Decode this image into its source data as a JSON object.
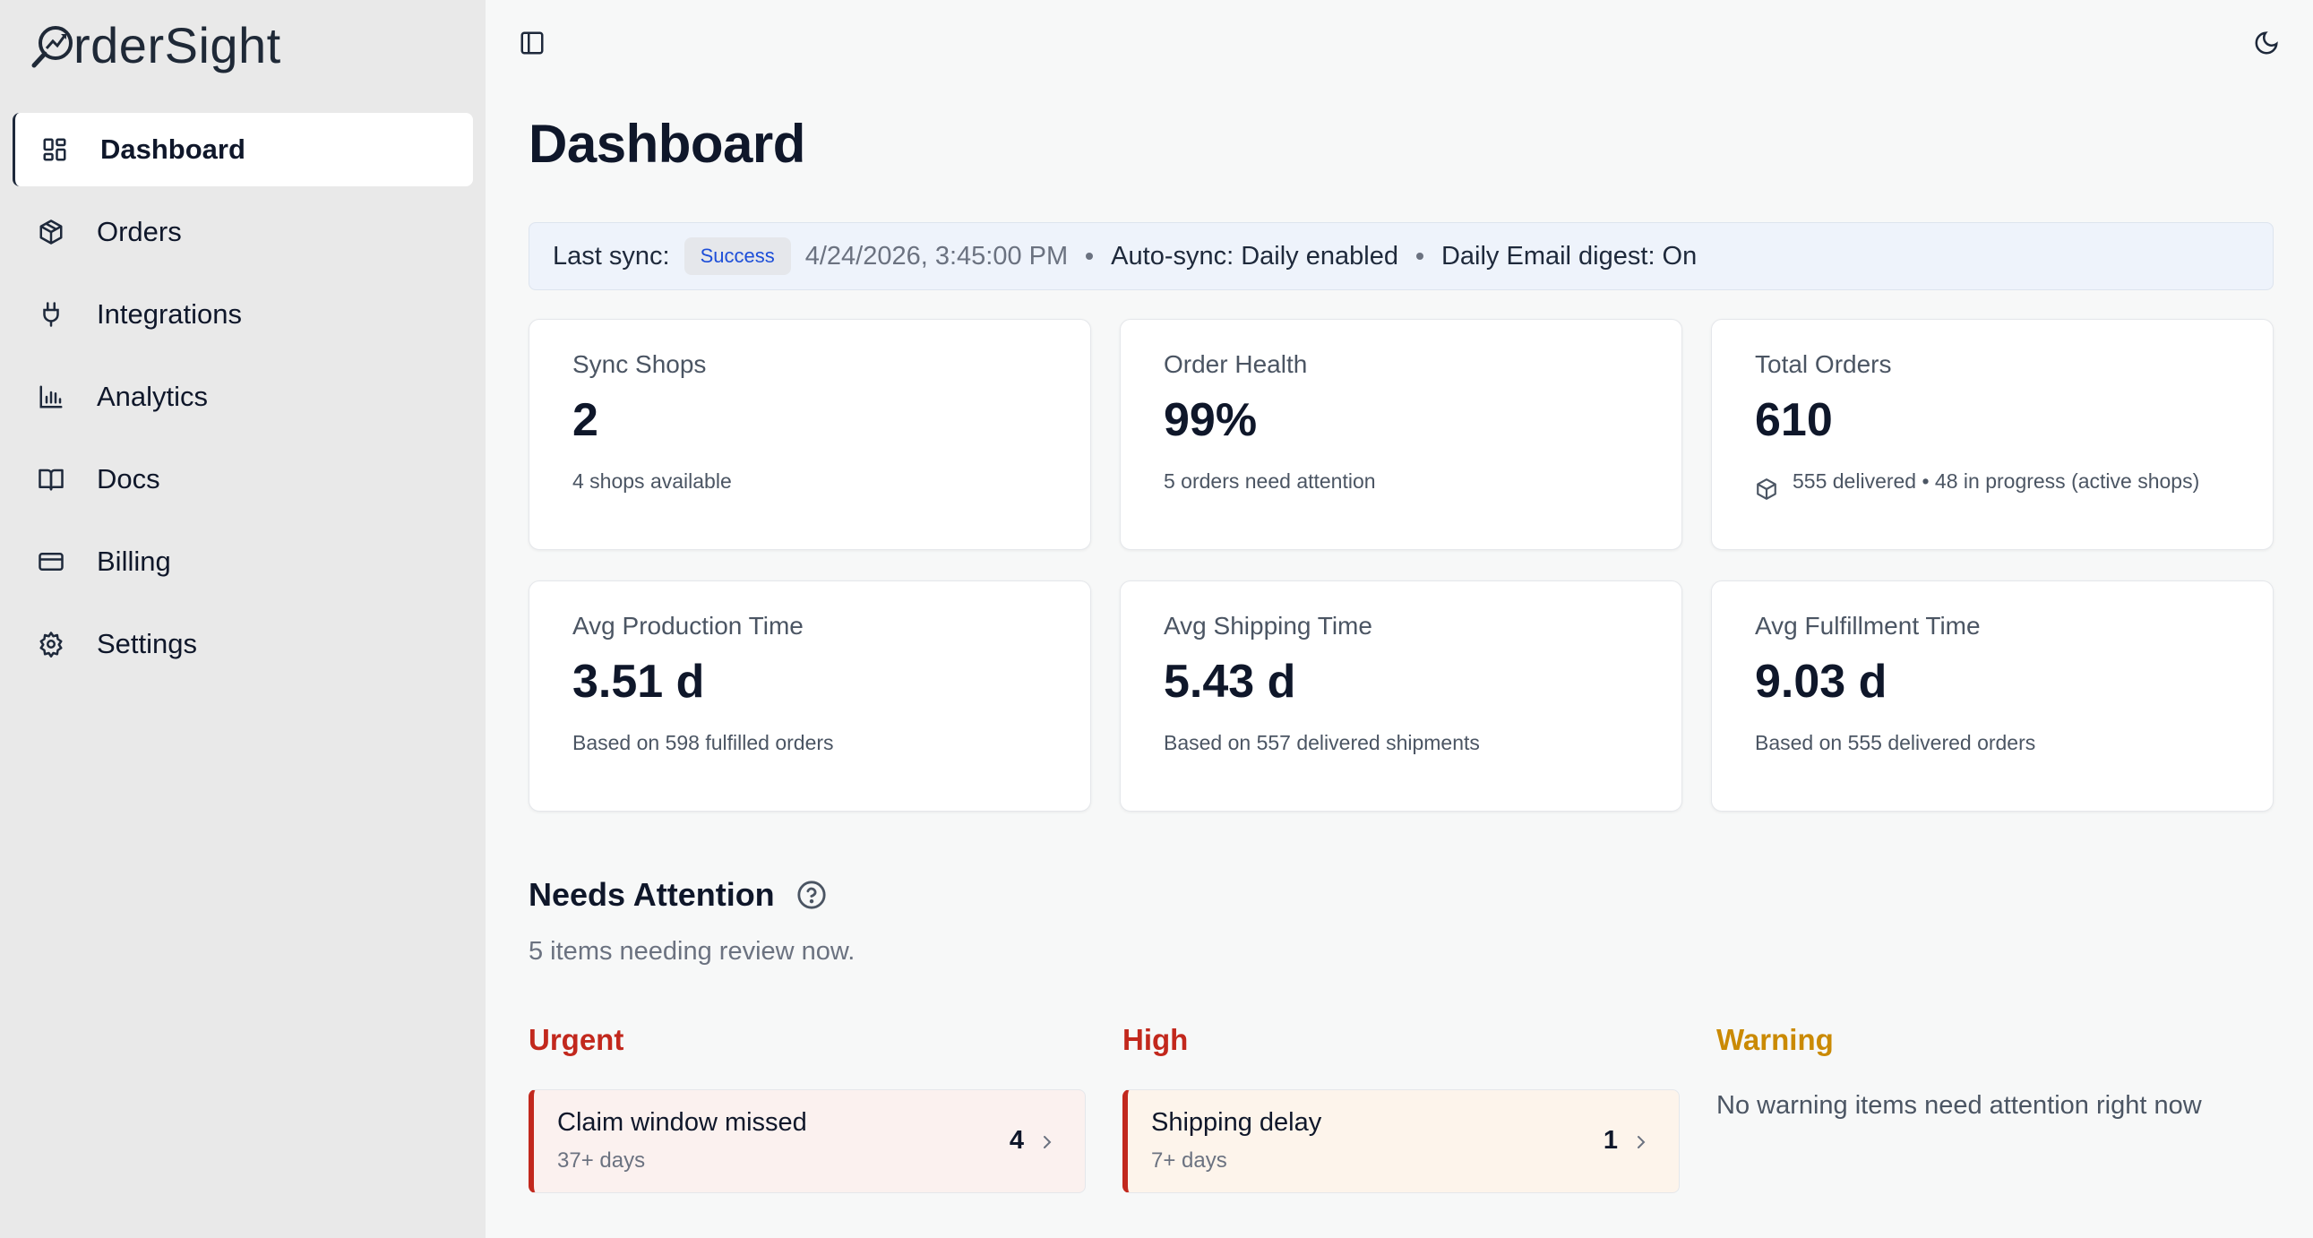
{
  "app": {
    "logo_text": "rderSight"
  },
  "sidebar": {
    "items": [
      {
        "label": "Dashboard",
        "icon": "layout-dashboard-icon",
        "active": true
      },
      {
        "label": "Orders",
        "icon": "package-icon"
      },
      {
        "label": "Integrations",
        "icon": "plug-icon"
      },
      {
        "label": "Analytics",
        "icon": "bar-chart-icon"
      },
      {
        "label": "Docs",
        "icon": "book-open-icon"
      },
      {
        "label": "Billing",
        "icon": "credit-card-icon"
      },
      {
        "label": "Settings",
        "icon": "gear-icon"
      }
    ]
  },
  "header": {
    "title": "Dashboard"
  },
  "sync": {
    "label": "Last sync:",
    "status": "Success",
    "timestamp": "4/24/2026, 3:45:00 PM",
    "auto_sync": "Auto-sync: Daily enabled",
    "digest": "Daily Email digest: On"
  },
  "stats": [
    {
      "label": "Sync Shops",
      "value": "2",
      "sub": "4 shops available"
    },
    {
      "label": "Order Health",
      "value": "99%",
      "sub": "5 orders need attention"
    },
    {
      "label": "Total Orders",
      "value": "610",
      "sub": "555 delivered • 48 in progress (active shops)"
    },
    {
      "label": "Avg Production Time",
      "value": "3.51 d",
      "sub": "Based on 598 fulfilled orders"
    },
    {
      "label": "Avg Shipping Time",
      "value": "5.43 d",
      "sub": "Based on 557 delivered shipments"
    },
    {
      "label": "Avg Fulfillment Time",
      "value": "9.03 d",
      "sub": "Based on 555 delivered orders"
    }
  ],
  "attention": {
    "title": "Needs Attention",
    "subtitle": "5 items needing review now.",
    "columns": [
      {
        "label": "Urgent",
        "color": "#c2281d",
        "item": {
          "title": "Claim window missed",
          "days": "37+ days",
          "count": "4"
        }
      },
      {
        "label": "High",
        "color": "#c2281d",
        "item": {
          "title": "Shipping delay",
          "days": "7+ days",
          "count": "1"
        }
      },
      {
        "label": "Warning",
        "color": "#ca8a04",
        "empty": "No warning items need attention right now"
      }
    ]
  },
  "colors": {
    "accent": "#1e293b",
    "urgent": "#c2281d",
    "warning": "#ca8a04",
    "badge_text": "#1d4ed8"
  }
}
